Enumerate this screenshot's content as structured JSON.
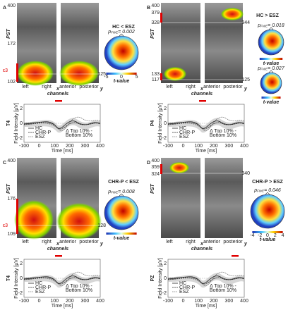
{
  "panels": [
    {
      "letter": "A",
      "title": "HC < ESZ",
      "pst": "PST",
      "pst_ticks": [
        400,
        172,
        102
      ],
      "epsilon": "ε3",
      "slice_labels": [
        125
      ],
      "p_values": [
        {
          "sym": "p",
          "sub": "FWE",
          "text": "= 0.002"
        }
      ],
      "scale": [
        -5,
        0,
        5
      ],
      "scale_label": "t-value",
      "channel_labels": [
        "left",
        "right",
        "anterior",
        "posterior"
      ],
      "x_axis": "x",
      "y_axis": "y",
      "channels": "channels",
      "plot": {
        "sensor": "T4",
        "ylabel": "Field Intensity [µV]",
        "yticks": [
          2,
          0,
          -2
        ],
        "xticks": [
          -100,
          0,
          100,
          200,
          300,
          400
        ],
        "xlabel": "Time [ms]",
        "legend": [
          "HC",
          "CHR-P",
          "ESZ"
        ],
        "note": [
          "Δ Top 10% -",
          "Bottom 10%"
        ]
      }
    },
    {
      "letter": "B",
      "title": "HC > ESZ",
      "pst": "PST",
      "pst_ticks": [
        400,
        379,
        328,
        133,
        117
      ],
      "slice_labels": [
        344,
        125
      ],
      "p_values": [
        {
          "sym": "p",
          "sub": "FWE",
          "text": "= 0.018"
        },
        {
          "sym": "p",
          "sub": "FWE",
          "text": "= 0.027"
        }
      ],
      "scale_label": "t-value",
      "channel_labels": [
        "left",
        "right",
        "anterior",
        "posterior"
      ],
      "x_axis": "x",
      "y_axis": "y",
      "channels": "channels",
      "plot": {
        "sensor": "P4",
        "ylabel": "Field Intensity [µV]",
        "yticks": [
          2,
          0,
          -2
        ],
        "xticks": [
          -100,
          0,
          100,
          200,
          300,
          400
        ],
        "xlabel": "Time [ms]",
        "legend": [
          "HC",
          "CHR-P",
          "ESZ"
        ],
        "note": [
          "Δ Top 10% -",
          "Bottom 10%"
        ]
      }
    },
    {
      "letter": "C",
      "title": "CHR-P < ESZ",
      "pst": "PST",
      "pst_ticks": [
        400,
        176,
        109
      ],
      "epsilon": "ε3",
      "slice_labels": [
        128
      ],
      "p_values": [
        {
          "sym": "p",
          "sub": "FWE",
          "text": "= 0.008"
        }
      ],
      "scale_label": "t-value",
      "channel_labels": [
        "left",
        "right",
        "anterior",
        "posterior"
      ],
      "x_axis": "x",
      "y_axis": "y",
      "channels": "channels",
      "plot": {
        "sensor": "T4",
        "ylabel": "Field Intensity [µV]",
        "yticks": [
          2,
          0,
          -2
        ],
        "xticks": [
          -100,
          0,
          100,
          200,
          300,
          400
        ],
        "xlabel": "Time [ms]",
        "legend": [
          "HC",
          "CHR-P",
          "ESZ"
        ],
        "note": [
          "Δ Top 10% -",
          "Bottom 10%"
        ]
      }
    },
    {
      "letter": "D",
      "title": "CHR-P > ESZ",
      "pst": "PST",
      "pst_ticks": [
        400,
        359,
        324
      ],
      "slice_labels": [
        340
      ],
      "p_values": [
        {
          "sym": "p",
          "sub": "FWE",
          "text": "= 0.046"
        }
      ],
      "scale": [
        -4,
        -2,
        0,
        2,
        4
      ],
      "scale_label": "t-value",
      "channel_labels": [
        "left",
        "right",
        "anterior",
        "posterior"
      ],
      "x_axis": "x",
      "y_axis": "y",
      "channels": "channels",
      "plot": {
        "sensor": "PZ",
        "ylabel": "Field Intensity [µV]",
        "yticks": [
          2,
          0,
          -2
        ],
        "xticks": [
          -100,
          0,
          100,
          200,
          300,
          400
        ],
        "xlabel": "Time [ms]",
        "legend": [
          "HC",
          "CHR-P",
          "ESZ"
        ],
        "note": [
          "Δ Top 10% -",
          "Bottom 10%"
        ]
      }
    }
  ]
}
